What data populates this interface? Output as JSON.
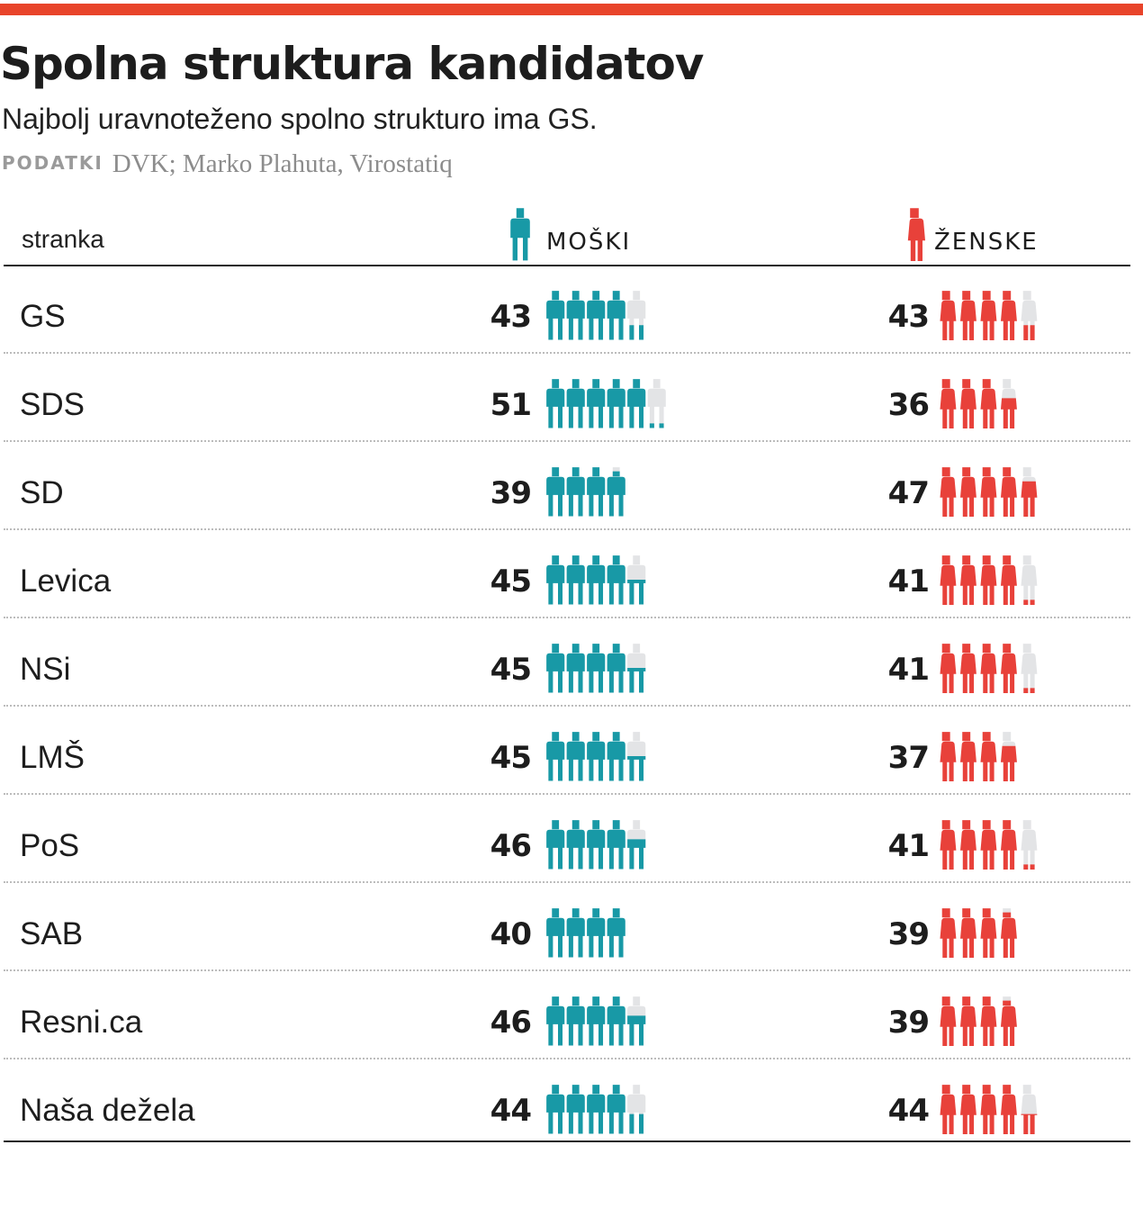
{
  "header": {
    "title": "Spolna struktura kandidatov",
    "subtitle": "Najbolj uravnoteženo spolno strukturo ima GS.",
    "source_label": "PODATKI",
    "source_text": "DVK; Marko Plahuta, Virostatiq"
  },
  "columns": {
    "party": "stranka",
    "men": "MOŠKI",
    "women": "ŽENSKE"
  },
  "colors": {
    "men": "#1899a6",
    "women": "#e8413a",
    "empty": "#e3e4e6",
    "accent": "#e8442a"
  },
  "chart_data": {
    "type": "pictogram",
    "title": "Spolna struktura kandidatov",
    "subtitle": "Najbolj uravnoteženo spolno strukturo ima GS.",
    "unit_per_icon": 10,
    "series": [
      {
        "name": "MOŠKI",
        "color": "#1899a6"
      },
      {
        "name": "ŽENSKE",
        "color": "#e8413a"
      }
    ],
    "rows": [
      {
        "party": "GS",
        "men": 43,
        "women": 43
      },
      {
        "party": "SDS",
        "men": 51,
        "women": 36
      },
      {
        "party": "SD",
        "men": 39,
        "women": 47
      },
      {
        "party": "Levica",
        "men": 45,
        "women": 41
      },
      {
        "party": "NSi",
        "men": 45,
        "women": 41
      },
      {
        "party": "LMŠ",
        "men": 45,
        "women": 37
      },
      {
        "party": "PoS",
        "men": 46,
        "women": 41
      },
      {
        "party": "SAB",
        "men": 40,
        "women": 39
      },
      {
        "party": "Resni.ca",
        "men": 46,
        "women": 39
      },
      {
        "party": "Naša dežela",
        "men": 44,
        "women": 44
      }
    ]
  }
}
